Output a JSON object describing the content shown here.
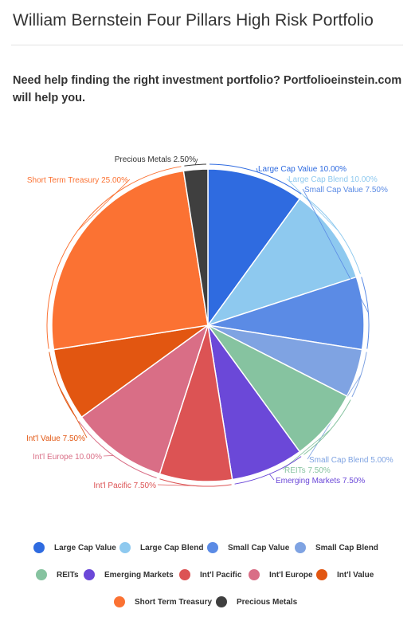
{
  "page": {
    "title": "William Bernstein Four Pillars High Risk Portfolio",
    "help_text": "Need help finding the right investment portfolio? Portfolioeinstein.com will help you."
  },
  "chart_data": {
    "type": "pie",
    "slices": [
      {
        "name": "Large Cap Value",
        "value": 10.0,
        "label": "Large Cap Value 10.00%",
        "color": "#2f6be0"
      },
      {
        "name": "Large Cap Blend",
        "value": 10.0,
        "label": "Large Cap Blend 10.00%",
        "color": "#8ec9ef"
      },
      {
        "name": "Small Cap Value",
        "value": 7.5,
        "label": "Small Cap Value 7.50%",
        "color": "#5b8be5"
      },
      {
        "name": "Small Cap Blend",
        "value": 5.0,
        "label": "Small Cap Blend 5.00%",
        "color": "#7fa3e2"
      },
      {
        "name": "REITs",
        "value": 7.5,
        "label": "REITs 7.50%",
        "color": "#86c3a0"
      },
      {
        "name": "Emerging Markets",
        "value": 7.5,
        "label": "Emerging Markets 7.50%",
        "color": "#6b48d8"
      },
      {
        "name": "Int'l Pacific",
        "value": 7.5,
        "label": "Int'l Pacific 7.50%",
        "color": "#dc5354"
      },
      {
        "name": "Int'l Europe",
        "value": 10.0,
        "label": "Int'l Europe 10.00%",
        "color": "#d96e86"
      },
      {
        "name": "Int'l Value",
        "value": 7.5,
        "label": "Int'l Value 7.50%",
        "color": "#e25611"
      },
      {
        "name": "Short Term Treasury",
        "value": 25.0,
        "label": "Short Term Treasury 25.00%",
        "color": "#fb7233"
      },
      {
        "name": "Precious Metals",
        "value": 2.5,
        "label": "Precious Metals 2.50%",
        "color": "#3f3f3f"
      }
    ],
    "legend_placement": "bottom"
  }
}
